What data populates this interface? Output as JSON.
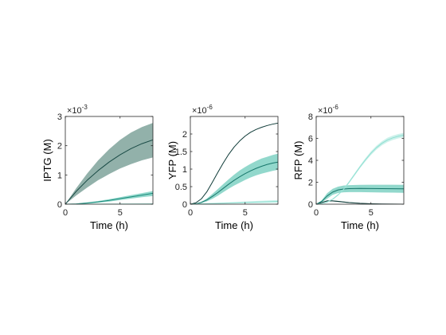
{
  "chart_data": [
    {
      "type": "line",
      "xlabel": "Time (h)",
      "ylabel": "IPTG (M)",
      "exponent_label": "× 10^-3",
      "exponent_prefix": "×10",
      "exponent_power": "-3",
      "xlim": [
        0,
        8
      ],
      "ylim": [
        0,
        3
      ],
      "xticks": [
        0,
        5
      ],
      "xtick_labels": [
        "0",
        "5"
      ],
      "yticks": [
        0,
        1,
        2,
        3
      ],
      "ytick_labels": [
        "0",
        "1",
        "2",
        "3"
      ],
      "grid": false,
      "series": [
        {
          "color": "#1b4c47",
          "band_color": "#7fa39b",
          "x": [
            0,
            1,
            2,
            3,
            4,
            5,
            6,
            7,
            8
          ],
          "y": [
            0,
            0.44,
            0.82,
            1.15,
            1.44,
            1.69,
            1.9,
            2.07,
            2.2
          ],
          "lower": [
            0,
            0.3,
            0.57,
            0.82,
            1.03,
            1.22,
            1.37,
            1.5,
            1.6
          ],
          "upper": [
            0,
            0.55,
            1.05,
            1.5,
            1.88,
            2.2,
            2.45,
            2.64,
            2.78
          ]
        },
        {
          "color": "#1a8a7a",
          "band_color": "#7fd1c3",
          "x": [
            0,
            1,
            2,
            3,
            4,
            5,
            6,
            7,
            8
          ],
          "y": [
            0,
            0.01,
            0.04,
            0.08,
            0.13,
            0.19,
            0.25,
            0.31,
            0.37
          ],
          "lower": [
            0,
            0.0,
            0.02,
            0.05,
            0.09,
            0.14,
            0.19,
            0.24,
            0.28
          ],
          "upper": [
            0,
            0.02,
            0.06,
            0.11,
            0.17,
            0.24,
            0.31,
            0.38,
            0.45
          ]
        },
        {
          "color": "#8fe0d2",
          "band_color": "#c4efe8",
          "x": [
            0,
            8
          ],
          "y": [
            0,
            0.01
          ],
          "lower": [
            0,
            0.0
          ],
          "upper": [
            0,
            0.02
          ]
        }
      ]
    },
    {
      "type": "line",
      "xlabel": "Time (h)",
      "ylabel": "YFP (M)",
      "exponent_label": "× 10^-6",
      "exponent_prefix": "×10",
      "exponent_power": "-6",
      "xlim": [
        0,
        8
      ],
      "ylim": [
        0,
        2.5
      ],
      "xticks": [
        0,
        5
      ],
      "xtick_labels": [
        "0",
        "5"
      ],
      "yticks": [
        0,
        0.5,
        1,
        1.5,
        2
      ],
      "ytick_labels": [
        "0",
        "0.5",
        "1",
        "1.5",
        "2"
      ],
      "grid": false,
      "series": [
        {
          "color": "#0f3b38",
          "band_color": "#6f938d",
          "x": [
            0,
            0.5,
            1,
            1.5,
            2,
            2.5,
            3,
            3.5,
            4,
            4.5,
            5,
            5.5,
            6,
            6.5,
            7,
            7.5,
            8
          ],
          "y": [
            0,
            0.04,
            0.15,
            0.35,
            0.62,
            0.9,
            1.17,
            1.42,
            1.63,
            1.8,
            1.94,
            2.05,
            2.13,
            2.19,
            2.24,
            2.28,
            2.31
          ],
          "lower": [
            0,
            0.04,
            0.15,
            0.35,
            0.62,
            0.9,
            1.17,
            1.42,
            1.63,
            1.8,
            1.94,
            2.05,
            2.13,
            2.19,
            2.24,
            2.28,
            2.31
          ],
          "upper": [
            0,
            0.04,
            0.15,
            0.35,
            0.62,
            0.9,
            1.17,
            1.42,
            1.63,
            1.8,
            1.94,
            2.05,
            2.13,
            2.19,
            2.24,
            2.28,
            2.31
          ]
        },
        {
          "color": "#17776b",
          "band_color": "#7fd1c3",
          "x": [
            0,
            0.5,
            1,
            1.5,
            2,
            2.5,
            3,
            3.5,
            4,
            4.5,
            5,
            5.5,
            6,
            6.5,
            7,
            7.5,
            8
          ],
          "y": [
            0,
            0.01,
            0.05,
            0.12,
            0.22,
            0.33,
            0.45,
            0.57,
            0.68,
            0.78,
            0.87,
            0.95,
            1.02,
            1.08,
            1.13,
            1.17,
            1.2
          ],
          "lower": [
            0,
            0.0,
            0.03,
            0.08,
            0.15,
            0.24,
            0.34,
            0.44,
            0.53,
            0.61,
            0.69,
            0.76,
            0.82,
            0.87,
            0.91,
            0.95,
            0.98
          ],
          "upper": [
            0,
            0.02,
            0.07,
            0.16,
            0.29,
            0.43,
            0.57,
            0.71,
            0.84,
            0.96,
            1.06,
            1.15,
            1.23,
            1.3,
            1.35,
            1.4,
            1.44
          ]
        },
        {
          "color": "#8fe0d2",
          "band_color": "#c4efe8",
          "x": [
            0,
            2,
            4,
            6,
            8
          ],
          "y": [
            0,
            0.02,
            0.04,
            0.06,
            0.08
          ],
          "lower": [
            0,
            0.01,
            0.02,
            0.03,
            0.04
          ],
          "upper": [
            0,
            0.03,
            0.06,
            0.09,
            0.12
          ]
        }
      ]
    },
    {
      "type": "line",
      "xlabel": "Time (h)",
      "ylabel": "RFP (M)",
      "exponent_label": "× 10^-6",
      "exponent_prefix": "×10",
      "exponent_power": "-6",
      "xlim": [
        0,
        8
      ],
      "ylim": [
        0,
        8
      ],
      "xticks": [
        0,
        5
      ],
      "xtick_labels": [
        "0",
        "5"
      ],
      "yticks": [
        0,
        2,
        4,
        6,
        8
      ],
      "ytick_labels": [
        "0",
        "2",
        "4",
        "6",
        "8"
      ],
      "grid": false,
      "series": [
        {
          "color": "#0f3b38",
          "band_color": "#6f938d",
          "x": [
            0,
            0.5,
            1,
            1.5,
            2,
            3,
            4,
            5,
            6,
            7,
            8
          ],
          "y": [
            0,
            0.15,
            0.3,
            0.3,
            0.25,
            0.15,
            0.08,
            0.04,
            0.02,
            0.01,
            0.0
          ],
          "lower": [
            0,
            0.12,
            0.25,
            0.25,
            0.2,
            0.11,
            0.05,
            0.02,
            0.01,
            0.0,
            0.0
          ],
          "upper": [
            0,
            0.18,
            0.35,
            0.35,
            0.3,
            0.19,
            0.11,
            0.06,
            0.03,
            0.02,
            0.01
          ]
        },
        {
          "color": "#17776b",
          "band_color": "#7fd1c3",
          "x": [
            0,
            0.5,
            1,
            1.5,
            2,
            2.5,
            3,
            4,
            5,
            6,
            7,
            8
          ],
          "y": [
            0,
            0.25,
            0.75,
            1.1,
            1.3,
            1.38,
            1.42,
            1.44,
            1.43,
            1.42,
            1.41,
            1.4
          ],
          "lower": [
            0,
            0.15,
            0.5,
            0.85,
            1.02,
            1.08,
            1.1,
            1.1,
            1.08,
            1.06,
            1.05,
            1.04
          ],
          "upper": [
            0,
            0.35,
            1.0,
            1.4,
            1.6,
            1.7,
            1.74,
            1.76,
            1.77,
            1.77,
            1.77,
            1.76
          ]
        },
        {
          "color": "#8fe0d2",
          "band_color": "#c4efe8",
          "x": [
            0,
            0.5,
            1,
            1.5,
            2,
            2.5,
            3,
            3.5,
            4,
            4.5,
            5,
            5.5,
            6,
            6.5,
            7,
            7.5,
            8
          ],
          "y": [
            0,
            0.05,
            0.2,
            0.45,
            0.85,
            1.35,
            2.0,
            2.7,
            3.4,
            4.05,
            4.65,
            5.15,
            5.55,
            5.85,
            6.05,
            6.2,
            6.3
          ],
          "lower": [
            0,
            0.04,
            0.18,
            0.42,
            0.8,
            1.28,
            1.9,
            2.58,
            3.27,
            3.9,
            4.48,
            4.97,
            5.36,
            5.65,
            5.85,
            6.0,
            6.1
          ],
          "upper": [
            0,
            0.06,
            0.22,
            0.48,
            0.9,
            1.42,
            2.1,
            2.82,
            3.53,
            4.2,
            4.82,
            5.33,
            5.74,
            6.05,
            6.25,
            6.4,
            6.5
          ]
        }
      ]
    }
  ]
}
